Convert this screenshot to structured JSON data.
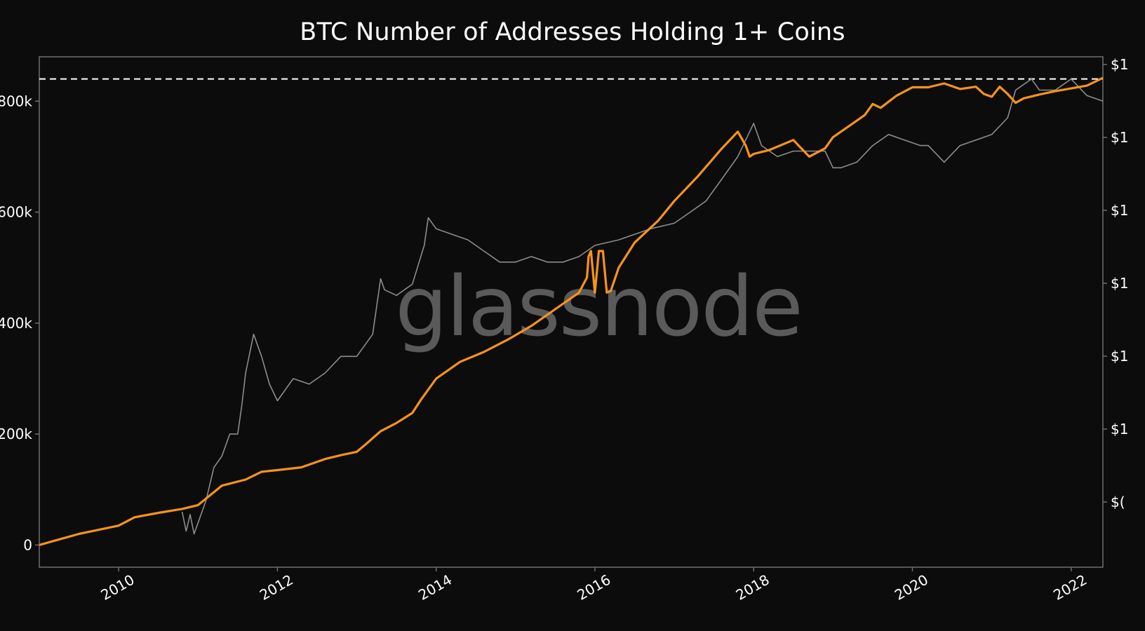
{
  "chart_data": {
    "type": "line",
    "title": "BTC Number of Addresses Holding 1+ Coins",
    "watermark": "glassnode",
    "xlabel": "",
    "ylabel": "",
    "xlim": [
      2009.0,
      2022.4
    ],
    "ylim": [
      -40000,
      880000
    ],
    "y_ticks": [
      {
        "value": 0,
        "label": "0"
      },
      {
        "value": 200000,
        "label": "200k"
      },
      {
        "value": 400000,
        "label": "400k"
      },
      {
        "value": 600000,
        "label": "600k"
      },
      {
        "value": 800000,
        "label": "800k"
      }
    ],
    "x_ticks": [
      {
        "value": 2010,
        "label": "2010"
      },
      {
        "value": 2012,
        "label": "2012"
      },
      {
        "value": 2014,
        "label": "2014"
      },
      {
        "value": 2016,
        "label": "2016"
      },
      {
        "value": 2018,
        "label": "2018"
      },
      {
        "value": 2020,
        "label": "2020"
      },
      {
        "value": 2022,
        "label": "2022"
      }
    ],
    "right_axis_labels": [
      "$1",
      "$1",
      "$1",
      "$1",
      "$1",
      "$1",
      "$("
    ],
    "ath_line": {
      "value": 840000,
      "style": "dashed",
      "color": "#ffffff"
    },
    "grid": false,
    "legend": "none",
    "series": [
      {
        "color": "#f7931a",
        "x": [
          2009.0,
          2009.5,
          2010.0,
          2010.2,
          2010.5,
          2010.8,
          2011.0,
          2011.3,
          2011.6,
          2011.7,
          2011.8,
          2012.0,
          2012.3,
          2012.6,
          2012.8,
          2013.0,
          2013.1,
          2013.3,
          2013.5,
          2013.7,
          2013.8,
          2014.0,
          2014.3,
          2014.6,
          2014.9,
          2015.2,
          2015.5,
          2015.8,
          2015.9,
          2015.92,
          2015.95,
          2016.0,
          2016.05,
          2016.1,
          2016.15,
          2016.2,
          2016.3,
          2016.5,
          2016.8,
          2017.0,
          2017.3,
          2017.6,
          2017.8,
          2017.9,
          2017.95,
          2018.0,
          2018.2,
          2018.5,
          2018.7,
          2018.9,
          2019.0,
          2019.2,
          2019.4,
          2019.5,
          2019.6,
          2019.8,
          2020.0,
          2020.2,
          2020.4,
          2020.6,
          2020.8,
          2020.9,
          2021.0,
          2021.1,
          2021.2,
          2021.3,
          2021.4,
          2021.6,
          2021.8,
          2022.0,
          2022.2,
          2022.4
        ],
        "y": [
          0,
          20000,
          35000,
          50000,
          58000,
          65000,
          72000,
          107000,
          118000,
          125000,
          132000,
          135000,
          140000,
          155000,
          162000,
          168000,
          180000,
          205000,
          220000,
          238000,
          260000,
          300000,
          330000,
          348000,
          370000,
          395000,
          425000,
          455000,
          482000,
          520000,
          530000,
          455000,
          530000,
          530000,
          455000,
          458000,
          500000,
          545000,
          585000,
          620000,
          665000,
          715000,
          745000,
          720000,
          700000,
          705000,
          712000,
          730000,
          700000,
          715000,
          735000,
          755000,
          775000,
          795000,
          788000,
          810000,
          825000,
          825000,
          832000,
          822000,
          826000,
          813000,
          808000,
          826000,
          813000,
          797000,
          805000,
          812000,
          818000,
          823000,
          828000,
          842000
        ]
      },
      {
        "color": "#8c8c8c",
        "x": [
          2010.8,
          2010.85,
          2010.9,
          2010.95,
          2011.0,
          2011.1,
          2011.2,
          2011.3,
          2011.4,
          2011.5,
          2011.55,
          2011.6,
          2011.7,
          2011.8,
          2011.9,
          2012.0,
          2012.2,
          2012.4,
          2012.6,
          2012.8,
          2013.0,
          2013.2,
          2013.3,
          2013.35,
          2013.5,
          2013.7,
          2013.85,
          2013.9,
          2014.0,
          2014.2,
          2014.4,
          2014.6,
          2014.8,
          2015.0,
          2015.2,
          2015.4,
          2015.6,
          2015.8,
          2016.0,
          2016.3,
          2016.5,
          2016.7,
          2017.0,
          2017.2,
          2017.4,
          2017.6,
          2017.8,
          2017.9,
          2018.0,
          2018.1,
          2018.3,
          2018.5,
          2018.7,
          2018.9,
          2019.0,
          2019.1,
          2019.3,
          2019.5,
          2019.7,
          2019.9,
          2020.1,
          2020.2,
          2020.4,
          2020.6,
          2020.8,
          2021.0,
          2021.2,
          2021.3,
          2021.5,
          2021.6,
          2021.8,
          2022.0,
          2022.2,
          2022.4
        ],
        "y": [
          60000,
          25000,
          55000,
          20000,
          40000,
          80000,
          140000,
          160000,
          200000,
          200000,
          250000,
          310000,
          380000,
          340000,
          290000,
          260000,
          300000,
          290000,
          310000,
          340000,
          340000,
          380000,
          480000,
          460000,
          450000,
          470000,
          540000,
          590000,
          570000,
          560000,
          550000,
          530000,
          510000,
          510000,
          520000,
          510000,
          510000,
          520000,
          540000,
          550000,
          560000,
          570000,
          580000,
          600000,
          620000,
          660000,
          700000,
          730000,
          760000,
          720000,
          700000,
          710000,
          710000,
          710000,
          680000,
          680000,
          690000,
          720000,
          740000,
          730000,
          720000,
          720000,
          690000,
          720000,
          730000,
          740000,
          770000,
          820000,
          840000,
          820000,
          820000,
          840000,
          810000,
          800000
        ]
      }
    ]
  }
}
